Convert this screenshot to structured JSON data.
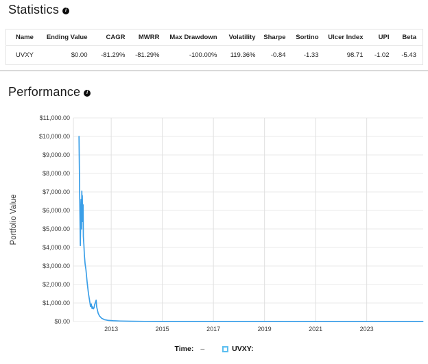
{
  "icons": {
    "info_glyph": "i"
  },
  "statistics": {
    "title": "Statistics",
    "table": {
      "columns": [
        "Name",
        "Ending Value",
        "CAGR",
        "MWRR",
        "Max Drawdown",
        "Volatility",
        "Sharpe",
        "Sortino",
        "Ulcer Index",
        "UPI",
        "Beta"
      ],
      "rows": [
        [
          "UVXY",
          "$0.00",
          "-81.29%",
          "-81.29%",
          "-100.00%",
          "119.36%",
          "-0.84",
          "-1.33",
          "98.71",
          "-1.02",
          "-5.43"
        ]
      ]
    }
  },
  "performance": {
    "title": "Performance"
  },
  "legend": {
    "time_label": "Time:",
    "time_value": "–",
    "series_label": "UVXY:",
    "swatch_color": "#5bbef0"
  },
  "chart_data": {
    "type": "line",
    "title": "",
    "xlabel": "",
    "ylabel": "Portfolio Value",
    "grid": true,
    "xlim": [
      2011.52,
      2025.21
    ],
    "ylim": [
      0,
      11000
    ],
    "x_ticks": [
      2013,
      2015,
      2017,
      2019,
      2021,
      2023
    ],
    "y_ticks": [
      {
        "v": 0,
        "label": "$0.00"
      },
      {
        "v": 1000,
        "label": "$1,000.00"
      },
      {
        "v": 2000,
        "label": "$2,000.00"
      },
      {
        "v": 3000,
        "label": "$3,000.00"
      },
      {
        "v": 4000,
        "label": "$4,000.00"
      },
      {
        "v": 5000,
        "label": "$5,000.00"
      },
      {
        "v": 6000,
        "label": "$6,000.00"
      },
      {
        "v": 7000,
        "label": "$7,000.00"
      },
      {
        "v": 8000,
        "label": "$8,000.00"
      },
      {
        "v": 9000,
        "label": "$9,000.00"
      },
      {
        "v": 10000,
        "label": "$10,000.00"
      },
      {
        "v": 11000,
        "label": "$11,000.00"
      }
    ],
    "series": [
      {
        "name": "UVXY",
        "color": "#3b9fe8",
        "x": [
          2011.74,
          2011.77,
          2011.79,
          2011.82,
          2011.84,
          2011.85,
          2011.86,
          2011.87,
          2011.88,
          2011.9,
          2011.91,
          2011.93,
          2011.95,
          2011.98,
          2012.01,
          2012.06,
          2012.11,
          2012.17,
          2012.19,
          2012.22,
          2012.25,
          2012.27,
          2012.3,
          2012.33,
          2012.35,
          2012.41,
          2012.43,
          2012.49,
          2012.54,
          2012.62,
          2012.73,
          2012.89,
          2013.08,
          2013.35,
          2013.75,
          2014.3,
          2015.1,
          2016.7,
          2018.9,
          2021.0,
          2023.2,
          2025.2
        ],
        "y": [
          10000,
          6500,
          4100,
          6600,
          5000,
          7050,
          5600,
          6800,
          5400,
          6300,
          4600,
          4150,
          3600,
          3100,
          2800,
          2100,
          1500,
          1000,
          800,
          950,
          700,
          800,
          680,
          750,
          900,
          1150,
          800,
          450,
          300,
          180,
          100,
          60,
          40,
          25,
          15,
          8,
          5,
          3,
          2,
          1,
          0.6,
          0.4
        ]
      }
    ]
  }
}
